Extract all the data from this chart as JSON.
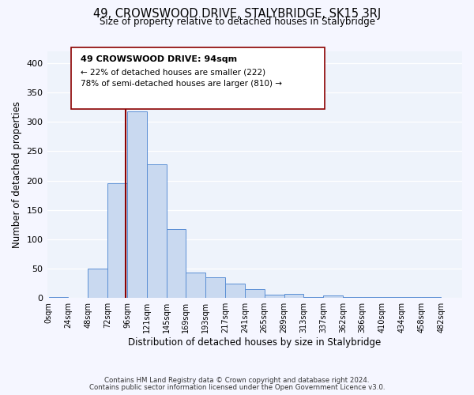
{
  "title": "49, CROWSWOOD DRIVE, STALYBRIDGE, SK15 3RJ",
  "subtitle": "Size of property relative to detached houses in Stalybridge",
  "xlabel": "Distribution of detached houses by size in Stalybridge",
  "ylabel": "Number of detached properties",
  "bar_color": "#c9d9f0",
  "bar_edge_color": "#5b8fd4",
  "background_color": "#eef3fb",
  "grid_color": "#ffffff",
  "vline_x": 94,
  "vline_color": "#8b0000",
  "annotation_title": "49 CROWSWOOD DRIVE: 94sqm",
  "annotation_line1": "← 22% of detached houses are smaller (222)",
  "annotation_line2": "78% of semi-detached houses are larger (810) →",
  "annotation_box_edge": "#8b0000",
  "bins_left_edges": [
    0,
    24,
    48,
    72,
    96,
    120,
    144,
    168,
    192,
    216,
    240,
    264,
    288,
    312,
    336,
    360,
    384,
    408,
    432,
    456
  ],
  "bin_width": 24,
  "bar_heights": [
    2,
    0,
    50,
    195,
    318,
    228,
    117,
    44,
    35,
    25,
    15,
    5,
    7,
    2,
    4,
    2,
    2,
    1,
    2,
    1
  ],
  "tick_labels": [
    "0sqm",
    "24sqm",
    "48sqm",
    "72sqm",
    "96sqm",
    "121sqm",
    "145sqm",
    "169sqm",
    "193sqm",
    "217sqm",
    "241sqm",
    "265sqm",
    "289sqm",
    "313sqm",
    "337sqm",
    "362sqm",
    "386sqm",
    "410sqm",
    "434sqm",
    "458sqm",
    "482sqm"
  ],
  "ylim": [
    0,
    420
  ],
  "yticks": [
    0,
    50,
    100,
    150,
    200,
    250,
    300,
    350,
    400
  ],
  "footer1": "Contains HM Land Registry data © Crown copyright and database right 2024.",
  "footer2": "Contains public sector information licensed under the Open Government Licence v3.0."
}
